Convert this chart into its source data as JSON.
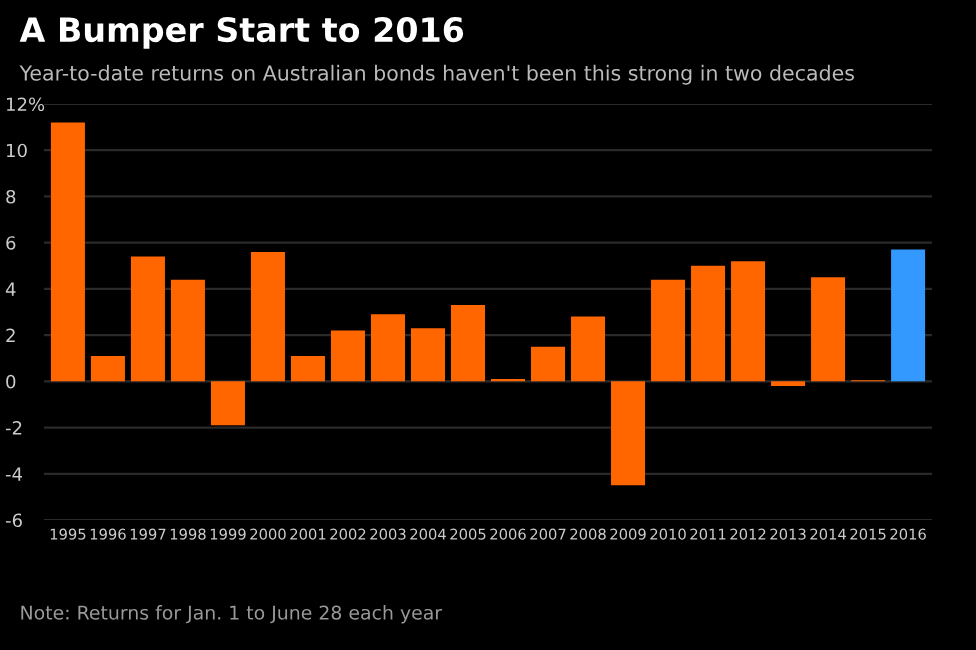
{
  "chart_data": {
    "type": "bar",
    "title": "A Bumper Start to 2016",
    "subtitle": "Year-to-date returns on Australian bonds haven't been this strong in two decades",
    "categories": [
      "1995",
      "1996",
      "1997",
      "1998",
      "1999",
      "2000",
      "2001",
      "2002",
      "2003",
      "2004",
      "2005",
      "2006",
      "2007",
      "2008",
      "2009",
      "2010",
      "2011",
      "2012",
      "2013",
      "2014",
      "2015",
      "2016"
    ],
    "values": [
      11.2,
      1.1,
      5.4,
      4.4,
      -1.9,
      5.6,
      1.1,
      2.2,
      2.9,
      2.3,
      3.3,
      0.1,
      1.5,
      2.8,
      -4.5,
      4.4,
      5.0,
      5.2,
      -0.2,
      4.5,
      0.05,
      5.7
    ],
    "colors": [
      "#ff6600",
      "#ff6600",
      "#ff6600",
      "#ff6600",
      "#ff6600",
      "#ff6600",
      "#ff6600",
      "#ff6600",
      "#ff6600",
      "#ff6600",
      "#ff6600",
      "#ff6600",
      "#ff6600",
      "#ff6600",
      "#ff6600",
      "#ff6600",
      "#ff6600",
      "#ff6600",
      "#ff6600",
      "#ff6600",
      "#ff6600",
      "#3399ff"
    ],
    "ylim": [
      -6,
      12
    ],
    "yticks": [
      -6,
      -4,
      -2,
      0,
      2,
      4,
      6,
      8,
      10,
      {
        "value": 12,
        "label": "12%"
      }
    ],
    "grid": "y",
    "annotations": [
      "Note: Returns for Jan. 1 to June 28 each year"
    ]
  }
}
